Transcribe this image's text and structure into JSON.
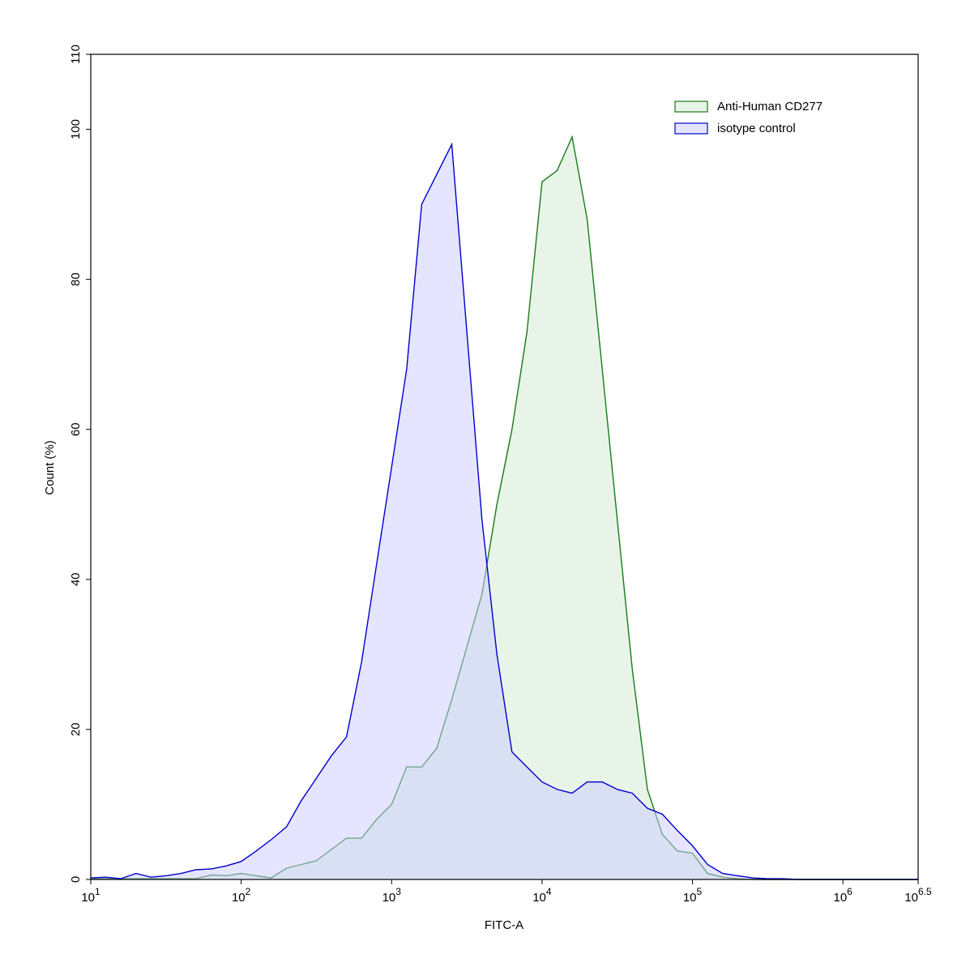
{
  "chart_data": {
    "type": "area",
    "x_label": "FITC-A",
    "y_label": "Count  (%)",
    "log_x": true,
    "x": [
      10,
      12.6,
      15.8,
      20,
      25.1,
      31.6,
      39.8,
      50.1,
      63.1,
      79.4,
      100,
      126,
      158,
      200,
      251,
      316,
      398,
      501,
      631,
      794,
      1000,
      1259,
      1585,
      1995,
      2512,
      3162,
      3981,
      5012,
      6310,
      7943,
      10000,
      12589,
      15849,
      19953,
      25119,
      31623,
      39811,
      50119,
      63096,
      79433,
      100000,
      125893,
      158489,
      199526,
      251189,
      316228,
      398107,
      501187,
      630957,
      794328,
      1000000,
      1258925,
      1584893,
      1995262,
      2511886,
      3162278
    ],
    "series": [
      {
        "name": "Anti-Human CD277",
        "color": "#1a7a1a",
        "fill": "#d2ead2",
        "values": [
          0.1,
          0.1,
          0.1,
          0.1,
          0.1,
          0.1,
          0.1,
          0.1,
          0.6,
          0.5,
          0.8,
          0.5,
          0.2,
          1.5,
          2,
          2.5,
          4,
          5.5,
          5.5,
          8,
          10,
          15,
          15,
          17.5,
          24,
          31,
          38,
          50,
          60,
          73,
          93,
          94.5,
          99,
          88,
          68,
          48,
          28,
          12,
          6,
          3.8,
          3.5,
          0.8,
          0.3,
          0.1,
          0,
          0,
          0,
          0,
          0,
          0,
          0,
          0,
          0,
          0,
          0,
          0
        ]
      },
      {
        "name": "isotype control",
        "color": "#0000cc",
        "fill": "#ccccff",
        "values": [
          0.2,
          0.3,
          0.1,
          0.8,
          0.3,
          0.5,
          0.8,
          1.3,
          1.4,
          1.8,
          2.4,
          3.8,
          5.3,
          7,
          10.5,
          13.5,
          16.5,
          19,
          29,
          42,
          55,
          68,
          90,
          94,
          98,
          73,
          48,
          30,
          17,
          15,
          13,
          12,
          11.5,
          13,
          13,
          12,
          11.5,
          9.5,
          8.7,
          6.5,
          4.5,
          2,
          0.8,
          0.5,
          0.2,
          0.1,
          0.1,
          0,
          0,
          0,
          0,
          0,
          0,
          0,
          0,
          0
        ]
      }
    ],
    "xlim": [
      10,
      3162278
    ],
    "xticks": [
      {
        "value": 10,
        "label": "10",
        "exponent": "1"
      },
      {
        "value": 100,
        "label": "10",
        "exponent": "2"
      },
      {
        "value": 1000,
        "label": "10",
        "exponent": "3"
      },
      {
        "value": 10000,
        "label": "10",
        "exponent": "4"
      },
      {
        "value": 100000,
        "label": "10",
        "exponent": "5"
      },
      {
        "value": 1000000,
        "label": "10",
        "exponent": "6"
      },
      {
        "value": 3162278,
        "label": "10",
        "exponent": "6.5"
      }
    ],
    "ylim": [
      0,
      110
    ],
    "yticks": [
      0,
      20,
      40,
      60,
      80,
      100,
      110
    ],
    "legend_position": "upper right"
  }
}
